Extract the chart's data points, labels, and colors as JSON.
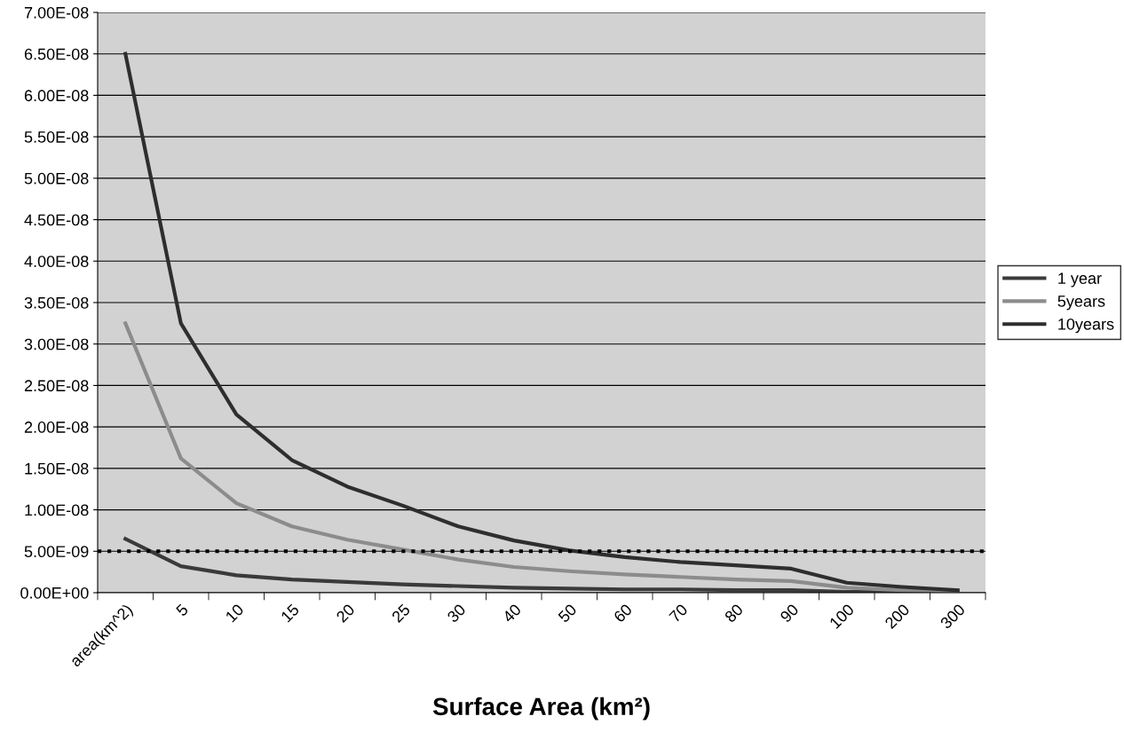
{
  "chart_data": {
    "type": "line",
    "xlabel": "Surface Area (km²)",
    "categories": [
      "area(km^2)",
      "5",
      "10",
      "15",
      "20",
      "25",
      "30",
      "40",
      "50",
      "60",
      "70",
      "80",
      "90",
      "100",
      "200",
      "300"
    ],
    "series": [
      {
        "name": "1 year",
        "color": "#3a3a3a",
        "values": [
          6.5e-09,
          3.2e-09,
          2.1e-09,
          1.6e-09,
          1.3e-09,
          1e-09,
          8e-10,
          6e-10,
          5e-10,
          4e-10,
          4e-10,
          3e-10,
          3e-10,
          1e-10,
          1e-10,
          0
        ]
      },
      {
        "name": "5years",
        "color": "#8c8c8c",
        "values": [
          3.25e-08,
          1.62e-08,
          1.08e-08,
          8e-09,
          6.4e-09,
          5.2e-09,
          4e-09,
          3.1e-09,
          2.6e-09,
          2.2e-09,
          1.9e-09,
          1.6e-09,
          1.4e-09,
          6e-10,
          3e-10,
          2e-10
        ]
      },
      {
        "name": "10years",
        "color": "#2e2e2e",
        "values": [
          6.5e-08,
          3.25e-08,
          2.15e-08,
          1.6e-08,
          1.28e-08,
          1.05e-08,
          8e-09,
          6.3e-09,
          5.1e-09,
          4.3e-09,
          3.7e-09,
          3.3e-09,
          2.9e-09,
          1.2e-09,
          7e-10,
          3e-10
        ]
      }
    ],
    "ylim": [
      0,
      7e-08
    ],
    "yticks": [
      {
        "value": 0,
        "label": "0.00E+00"
      },
      {
        "value": 5e-09,
        "label": "5.00E-09"
      },
      {
        "value": 1e-08,
        "label": "1.00E-08"
      },
      {
        "value": 1.5e-08,
        "label": "1.50E-08"
      },
      {
        "value": 2e-08,
        "label": "2.00E-08"
      },
      {
        "value": 2.5e-08,
        "label": "2.50E-08"
      },
      {
        "value": 3e-08,
        "label": "3.00E-08"
      },
      {
        "value": 3.5e-08,
        "label": "3.50E-08"
      },
      {
        "value": 4e-08,
        "label": "4.00E-08"
      },
      {
        "value": 4.5e-08,
        "label": "4.50E-08"
      },
      {
        "value": 5e-08,
        "label": "5.00E-08"
      },
      {
        "value": 5.5e-08,
        "label": "5.50E-08"
      },
      {
        "value": 6e-08,
        "label": "6.00E-08"
      },
      {
        "value": 6.5e-08,
        "label": "6.50E-08"
      },
      {
        "value": 7e-08,
        "label": "7.00E-08"
      }
    ],
    "ref_lines": [
      {
        "axis": "y",
        "value": 5e-09,
        "color": "#000000",
        "line_style": "dotted"
      }
    ],
    "grid": "y",
    "legend": "right",
    "marker": "none",
    "line_style": "solid"
  }
}
